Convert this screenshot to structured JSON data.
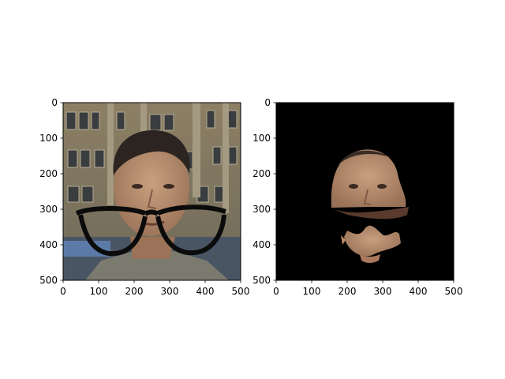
{
  "chart_data": [
    {
      "type": "image",
      "title": "",
      "xlabel": "",
      "ylabel": "",
      "xlim": [
        0,
        500
      ],
      "ylim": [
        500,
        0
      ],
      "xticks": [
        0,
        100,
        200,
        300,
        400,
        500
      ],
      "yticks": [
        0,
        100,
        200,
        300,
        400,
        500
      ],
      "xtick_labels": [
        "0",
        "100",
        "200",
        "300",
        "400",
        "500"
      ],
      "ytick_labels": [
        "0",
        "100",
        "200",
        "300",
        "400",
        "500"
      ],
      "grid": false,
      "content": "photo-with-glasses-overlay",
      "colors": {
        "background": "#ffffff",
        "axis": "#000000"
      }
    },
    {
      "type": "image",
      "title": "",
      "xlabel": "",
      "ylabel": "",
      "xlim": [
        0,
        500
      ],
      "ylim": [
        500,
        0
      ],
      "xticks": [
        0,
        100,
        200,
        300,
        400,
        500
      ],
      "yticks": [
        0,
        100,
        200,
        300,
        400,
        500
      ],
      "xtick_labels": [
        "0",
        "100",
        "200",
        "300",
        "400",
        "500"
      ],
      "ytick_labels": [
        "0",
        "100",
        "200",
        "300",
        "400",
        "500"
      ],
      "grid": false,
      "content": "segmented-face-mask-on-black",
      "colors": {
        "background": "#000000",
        "axis": "#000000",
        "skin": "#b98a6a"
      }
    }
  ]
}
